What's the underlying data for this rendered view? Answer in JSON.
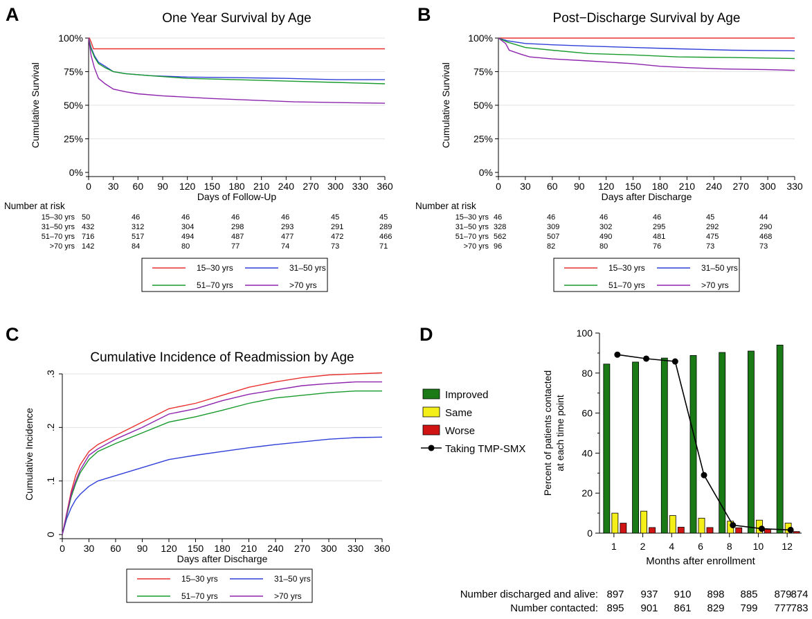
{
  "colors": {
    "s1": "#e8302f",
    "s2": "#2f3fd8",
    "s3": "#179a2c",
    "s4": "#8d23ad",
    "grid": "#e3e3e3",
    "improved": "#1a7a16",
    "same": "#f4ef18",
    "worse": "#d01414",
    "line": "#000000"
  },
  "chart_data": [
    {
      "panel_letter": "A",
      "type": "line",
      "title": "One Year Survival by Age",
      "xlabel": "Days of Follow-Up",
      "ylabel": "Cumulative Survival",
      "xlim": [
        0,
        360
      ],
      "ylim": [
        0,
        1
      ],
      "xticks": [
        0,
        30,
        60,
        90,
        120,
        150,
        180,
        210,
        240,
        270,
        300,
        330,
        360
      ],
      "yticks": [
        {
          "v": 0,
          "label": "0%"
        },
        {
          "v": 0.25,
          "label": "25%"
        },
        {
          "v": 0.5,
          "label": "50%"
        },
        {
          "v": 0.75,
          "label": "75%"
        },
        {
          "v": 1,
          "label": "100%"
        }
      ],
      "grid": true,
      "series": [
        {
          "name": "15–30 yrs",
          "color": "#e8302f",
          "points": [
            [
              0,
              1
            ],
            [
              1,
              1
            ],
            [
              3,
              0.97
            ],
            [
              6,
              0.92
            ],
            [
              360,
              0.92
            ]
          ]
        },
        {
          "name": "31–50 yrs",
          "color": "#2f3fd8",
          "points": [
            [
              0,
              1
            ],
            [
              3,
              0.93
            ],
            [
              7,
              0.87
            ],
            [
              12,
              0.82
            ],
            [
              20,
              0.79
            ],
            [
              30,
              0.75
            ],
            [
              45,
              0.735
            ],
            [
              75,
              0.72
            ],
            [
              120,
              0.71
            ],
            [
              180,
              0.705
            ],
            [
              240,
              0.7
            ],
            [
              300,
              0.69
            ],
            [
              360,
              0.69
            ]
          ]
        },
        {
          "name": "51–70 yrs",
          "color": "#179a2c",
          "points": [
            [
              0,
              1
            ],
            [
              3,
              0.92
            ],
            [
              7,
              0.86
            ],
            [
              12,
              0.81
            ],
            [
              20,
              0.78
            ],
            [
              30,
              0.75
            ],
            [
              45,
              0.735
            ],
            [
              75,
              0.72
            ],
            [
              120,
              0.7
            ],
            [
              180,
              0.69
            ],
            [
              240,
              0.68
            ],
            [
              300,
              0.67
            ],
            [
              360,
              0.66
            ]
          ]
        },
        {
          "name": ">70 yrs",
          "color": "#8d23ad",
          "points": [
            [
              0,
              1
            ],
            [
              3,
              0.87
            ],
            [
              7,
              0.78
            ],
            [
              12,
              0.7
            ],
            [
              20,
              0.66
            ],
            [
              30,
              0.62
            ],
            [
              45,
              0.6
            ],
            [
              60,
              0.585
            ],
            [
              90,
              0.57
            ],
            [
              150,
              0.55
            ],
            [
              210,
              0.535
            ],
            [
              250,
              0.525
            ],
            [
              300,
              0.52
            ],
            [
              360,
              0.515
            ]
          ]
        }
      ],
      "risk_table": {
        "header": "Number at risk",
        "rows": [
          {
            "label": "15–30 yrs",
            "values": [
              "50",
              "46",
              "46",
              "46",
              "46",
              "45",
              "45"
            ]
          },
          {
            "label": "31–50 yrs",
            "values": [
              "432",
              "312",
              "304",
              "298",
              "293",
              "291",
              "289"
            ]
          },
          {
            "label": "51–70 yrs",
            "values": [
              "716",
              "517",
              "494",
              "487",
              "477",
              "472",
              "466"
            ]
          },
          {
            "label": ">70 yrs",
            "values": [
              "142",
              "84",
              "80",
              "77",
              "74",
              "73",
              "71"
            ]
          }
        ]
      }
    },
    {
      "panel_letter": "B",
      "type": "line",
      "title": "Post−Discharge Survival by Age",
      "xlabel": "Days after Discharge",
      "ylabel": "Cumulative Survival",
      "xlim": [
        0,
        330
      ],
      "ylim": [
        0,
        1
      ],
      "xticks": [
        0,
        30,
        60,
        90,
        120,
        150,
        180,
        210,
        240,
        270,
        300,
        330
      ],
      "yticks": [
        {
          "v": 0,
          "label": "0%"
        },
        {
          "v": 0.25,
          "label": "25%"
        },
        {
          "v": 0.5,
          "label": "50%"
        },
        {
          "v": 0.75,
          "label": "75%"
        },
        {
          "v": 1,
          "label": "100%"
        }
      ],
      "grid": true,
      "series": [
        {
          "name": "15–30 yrs",
          "color": "#e8302f",
          "points": [
            [
              0,
              1
            ],
            [
              330,
              1
            ]
          ]
        },
        {
          "name": "31–50 yrs",
          "color": "#2f3fd8",
          "points": [
            [
              0,
              1
            ],
            [
              10,
              0.98
            ],
            [
              30,
              0.96
            ],
            [
              60,
              0.95
            ],
            [
              100,
              0.94
            ],
            [
              150,
              0.93
            ],
            [
              200,
              0.92
            ],
            [
              260,
              0.91
            ],
            [
              330,
              0.905
            ]
          ]
        },
        {
          "name": "51–70 yrs",
          "color": "#179a2c",
          "points": [
            [
              0,
              1
            ],
            [
              10,
              0.97
            ],
            [
              30,
              0.93
            ],
            [
              60,
              0.91
            ],
            [
              100,
              0.885
            ],
            [
              150,
              0.875
            ],
            [
              200,
              0.86
            ],
            [
              260,
              0.855
            ],
            [
              330,
              0.848
            ]
          ]
        },
        {
          "name": ">70 yrs",
          "color": "#8d23ad",
          "points": [
            [
              0,
              1
            ],
            [
              8,
              0.96
            ],
            [
              12,
              0.91
            ],
            [
              25,
              0.88
            ],
            [
              35,
              0.86
            ],
            [
              60,
              0.845
            ],
            [
              100,
              0.83
            ],
            [
              150,
              0.81
            ],
            [
              180,
              0.79
            ],
            [
              210,
              0.78
            ],
            [
              250,
              0.77
            ],
            [
              300,
              0.765
            ],
            [
              330,
              0.76
            ]
          ]
        }
      ],
      "risk_table": {
        "header": "Number at risk",
        "rows": [
          {
            "label": "15–30 yrs",
            "values": [
              "46",
              "46",
              "46",
              "46",
              "45",
              "44"
            ]
          },
          {
            "label": "31–50 yrs",
            "values": [
              "328",
              "309",
              "302",
              "295",
              "292",
              "290"
            ]
          },
          {
            "label": "51–70 yrs",
            "values": [
              "562",
              "507",
              "490",
              "481",
              "475",
              "468"
            ]
          },
          {
            "label": ">70 yrs",
            "values": [
              "96",
              "82",
              "80",
              "76",
              "73",
              "73"
            ]
          }
        ]
      }
    },
    {
      "panel_letter": "C",
      "type": "line",
      "title": "Cumulative Incidence of Readmission by Age",
      "xlabel": "Days after Discharge",
      "ylabel": "Cumulative Incidence",
      "xlim": [
        0,
        360
      ],
      "ylim": [
        0,
        0.3
      ],
      "xticks": [
        0,
        30,
        60,
        90,
        120,
        150,
        180,
        210,
        240,
        270,
        300,
        330,
        360
      ],
      "yticks": [
        {
          "v": 0,
          "label": "0"
        },
        {
          "v": 0.1,
          "label": ".1"
        },
        {
          "v": 0.2,
          "label": ".2"
        },
        {
          "v": 0.3,
          "label": ".3"
        }
      ],
      "grid": true,
      "series": [
        {
          "name": "15–30 yrs",
          "color": "#e8302f",
          "points": [
            [
              0,
              0
            ],
            [
              5,
              0.04
            ],
            [
              10,
              0.08
            ],
            [
              15,
              0.11
            ],
            [
              20,
              0.13
            ],
            [
              30,
              0.155
            ],
            [
              40,
              0.168
            ],
            [
              60,
              0.185
            ],
            [
              90,
              0.21
            ],
            [
              120,
              0.235
            ],
            [
              150,
              0.245
            ],
            [
              180,
              0.26
            ],
            [
              210,
              0.275
            ],
            [
              240,
              0.285
            ],
            [
              270,
              0.293
            ],
            [
              300,
              0.298
            ],
            [
              330,
              0.3
            ],
            [
              360,
              0.302
            ]
          ]
        },
        {
          "name": "31–50 yrs",
          "color": "#2f3fd8",
          "points": [
            [
              0,
              0
            ],
            [
              5,
              0.03
            ],
            [
              10,
              0.05
            ],
            [
              15,
              0.065
            ],
            [
              20,
              0.075
            ],
            [
              30,
              0.09
            ],
            [
              40,
              0.1
            ],
            [
              60,
              0.11
            ],
            [
              90,
              0.125
            ],
            [
              120,
              0.14
            ],
            [
              150,
              0.148
            ],
            [
              180,
              0.155
            ],
            [
              210,
              0.162
            ],
            [
              240,
              0.168
            ],
            [
              270,
              0.173
            ],
            [
              300,
              0.178
            ],
            [
              330,
              0.181
            ],
            [
              360,
              0.182
            ]
          ]
        },
        {
          "name": "51–70 yrs",
          "color": "#179a2c",
          "points": [
            [
              0,
              0
            ],
            [
              5,
              0.035
            ],
            [
              10,
              0.07
            ],
            [
              15,
              0.095
            ],
            [
              20,
              0.115
            ],
            [
              30,
              0.14
            ],
            [
              40,
              0.155
            ],
            [
              60,
              0.17
            ],
            [
              90,
              0.19
            ],
            [
              120,
              0.21
            ],
            [
              150,
              0.22
            ],
            [
              180,
              0.232
            ],
            [
              210,
              0.245
            ],
            [
              240,
              0.255
            ],
            [
              270,
              0.26
            ],
            [
              300,
              0.265
            ],
            [
              330,
              0.268
            ],
            [
              360,
              0.268
            ]
          ]
        },
        {
          "name": ">70 yrs",
          "color": "#8d23ad",
          "points": [
            [
              0,
              0
            ],
            [
              5,
              0.038
            ],
            [
              10,
              0.075
            ],
            [
              15,
              0.1
            ],
            [
              20,
              0.12
            ],
            [
              30,
              0.148
            ],
            [
              40,
              0.16
            ],
            [
              60,
              0.178
            ],
            [
              90,
              0.2
            ],
            [
              120,
              0.225
            ],
            [
              150,
              0.235
            ],
            [
              180,
              0.25
            ],
            [
              210,
              0.262
            ],
            [
              240,
              0.27
            ],
            [
              270,
              0.278
            ],
            [
              300,
              0.282
            ],
            [
              330,
              0.285
            ],
            [
              360,
              0.285
            ]
          ]
        }
      ]
    },
    {
      "panel_letter": "D",
      "type": "bar",
      "xlabel": "Months after enrollment",
      "ylabel_lines": [
        "Percent of patients contacted",
        "at each time point"
      ],
      "ylim": [
        0,
        100
      ],
      "yticks": [
        0,
        20,
        40,
        60,
        80,
        100
      ],
      "categories": [
        "1",
        "2",
        "4",
        "6",
        "8",
        "10",
        "12"
      ],
      "series": [
        {
          "name": "Improved",
          "color": "#1a7a16",
          "values": [
            84.5,
            85.5,
            87.5,
            88.8,
            90.3,
            91.0,
            94.0
          ]
        },
        {
          "name": "Same",
          "color": "#f4ef18",
          "values": [
            10.0,
            11.0,
            8.8,
            7.5,
            6.0,
            6.5,
            5.0
          ]
        },
        {
          "name": "Worse",
          "color": "#d01414",
          "values": [
            5.0,
            2.8,
            3.0,
            2.8,
            2.7,
            2.0,
            0.8
          ]
        }
      ],
      "line_series": {
        "name": "Taking TMP-SMX",
        "color": "#000000",
        "values": [
          89.2,
          87.2,
          85.8,
          29.0,
          4.0,
          2.2,
          1.6
        ]
      },
      "table": [
        {
          "label": "Number discharged and alive:",
          "values": [
            "897",
            "937",
            "910",
            "898",
            "885",
            "879",
            "874"
          ]
        },
        {
          "label": "Number contacted:",
          "values": [
            "895",
            "901",
            "861",
            "829",
            "799",
            "777",
            "783"
          ]
        }
      ]
    }
  ]
}
